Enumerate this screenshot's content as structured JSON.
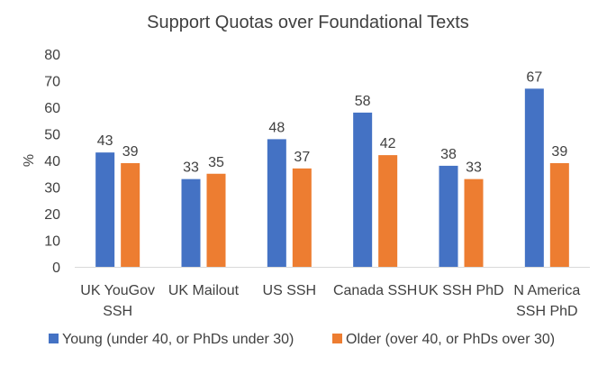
{
  "chart_data": {
    "type": "bar",
    "title": "Support Quotas over Foundational Texts",
    "ylabel": "%",
    "xlabel": "",
    "ylim": [
      0,
      80
    ],
    "yticks": [
      0,
      10,
      20,
      30,
      40,
      50,
      60,
      70,
      80
    ],
    "grid": false,
    "legend_position": "bottom",
    "categories": [
      [
        "UK YouGov",
        "SSH"
      ],
      [
        "UK Mailout"
      ],
      [
        "US SSH"
      ],
      [
        "Canada SSH"
      ],
      [
        "UK SSH PhD"
      ],
      [
        "N America",
        "SSH PhD"
      ]
    ],
    "series": [
      {
        "name": "Young (under 40, or PhDs under 30)",
        "color": "#4472C4",
        "values": [
          43,
          33,
          48,
          58,
          38,
          67
        ]
      },
      {
        "name": "Older (over 40, or PhDs over 30)",
        "color": "#ED7D31",
        "values": [
          39,
          35,
          37,
          42,
          33,
          39
        ]
      }
    ]
  }
}
